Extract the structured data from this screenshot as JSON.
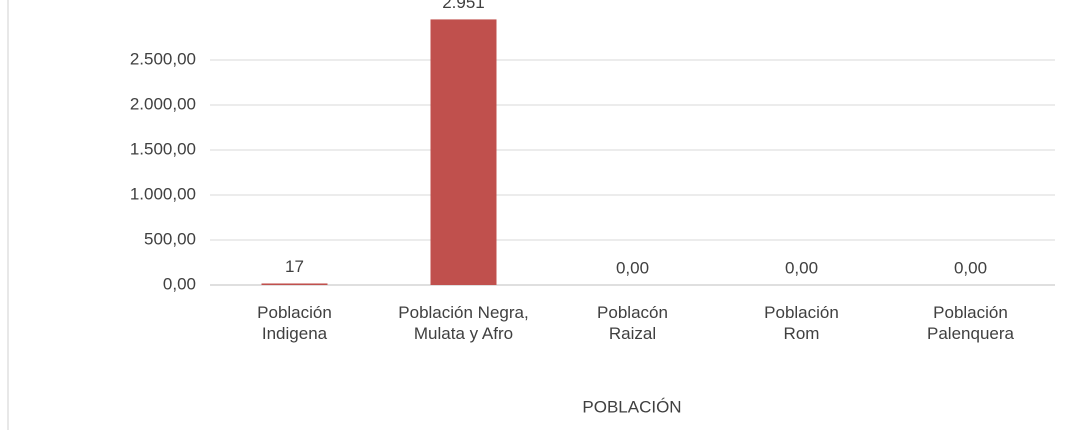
{
  "chart_data": {
    "type": "bar",
    "categories": [
      "Población Indigena",
      "Población Negra, Mulata y Afro",
      "Poblacón Raizal",
      "Población Rom",
      "Población Palenquera"
    ],
    "values": [
      17,
      2951,
      0,
      0,
      0
    ],
    "value_labels": [
      "17",
      "2.951",
      "0,00",
      "0,00",
      "0,00"
    ],
    "color": "#c0504d",
    "x_label": "POBLACIÓN",
    "ylim": [
      0,
      3000
    ],
    "yticks": [
      {
        "value": 0,
        "label": "0,00"
      },
      {
        "value": 500,
        "label": "500,00"
      },
      {
        "value": 1000,
        "label": "1.000,00"
      },
      {
        "value": 1500,
        "label": "1.500,00"
      },
      {
        "value": 2000,
        "label": "2.000,00"
      },
      {
        "value": 2500,
        "label": "2.500,00"
      }
    ],
    "grid": true
  }
}
